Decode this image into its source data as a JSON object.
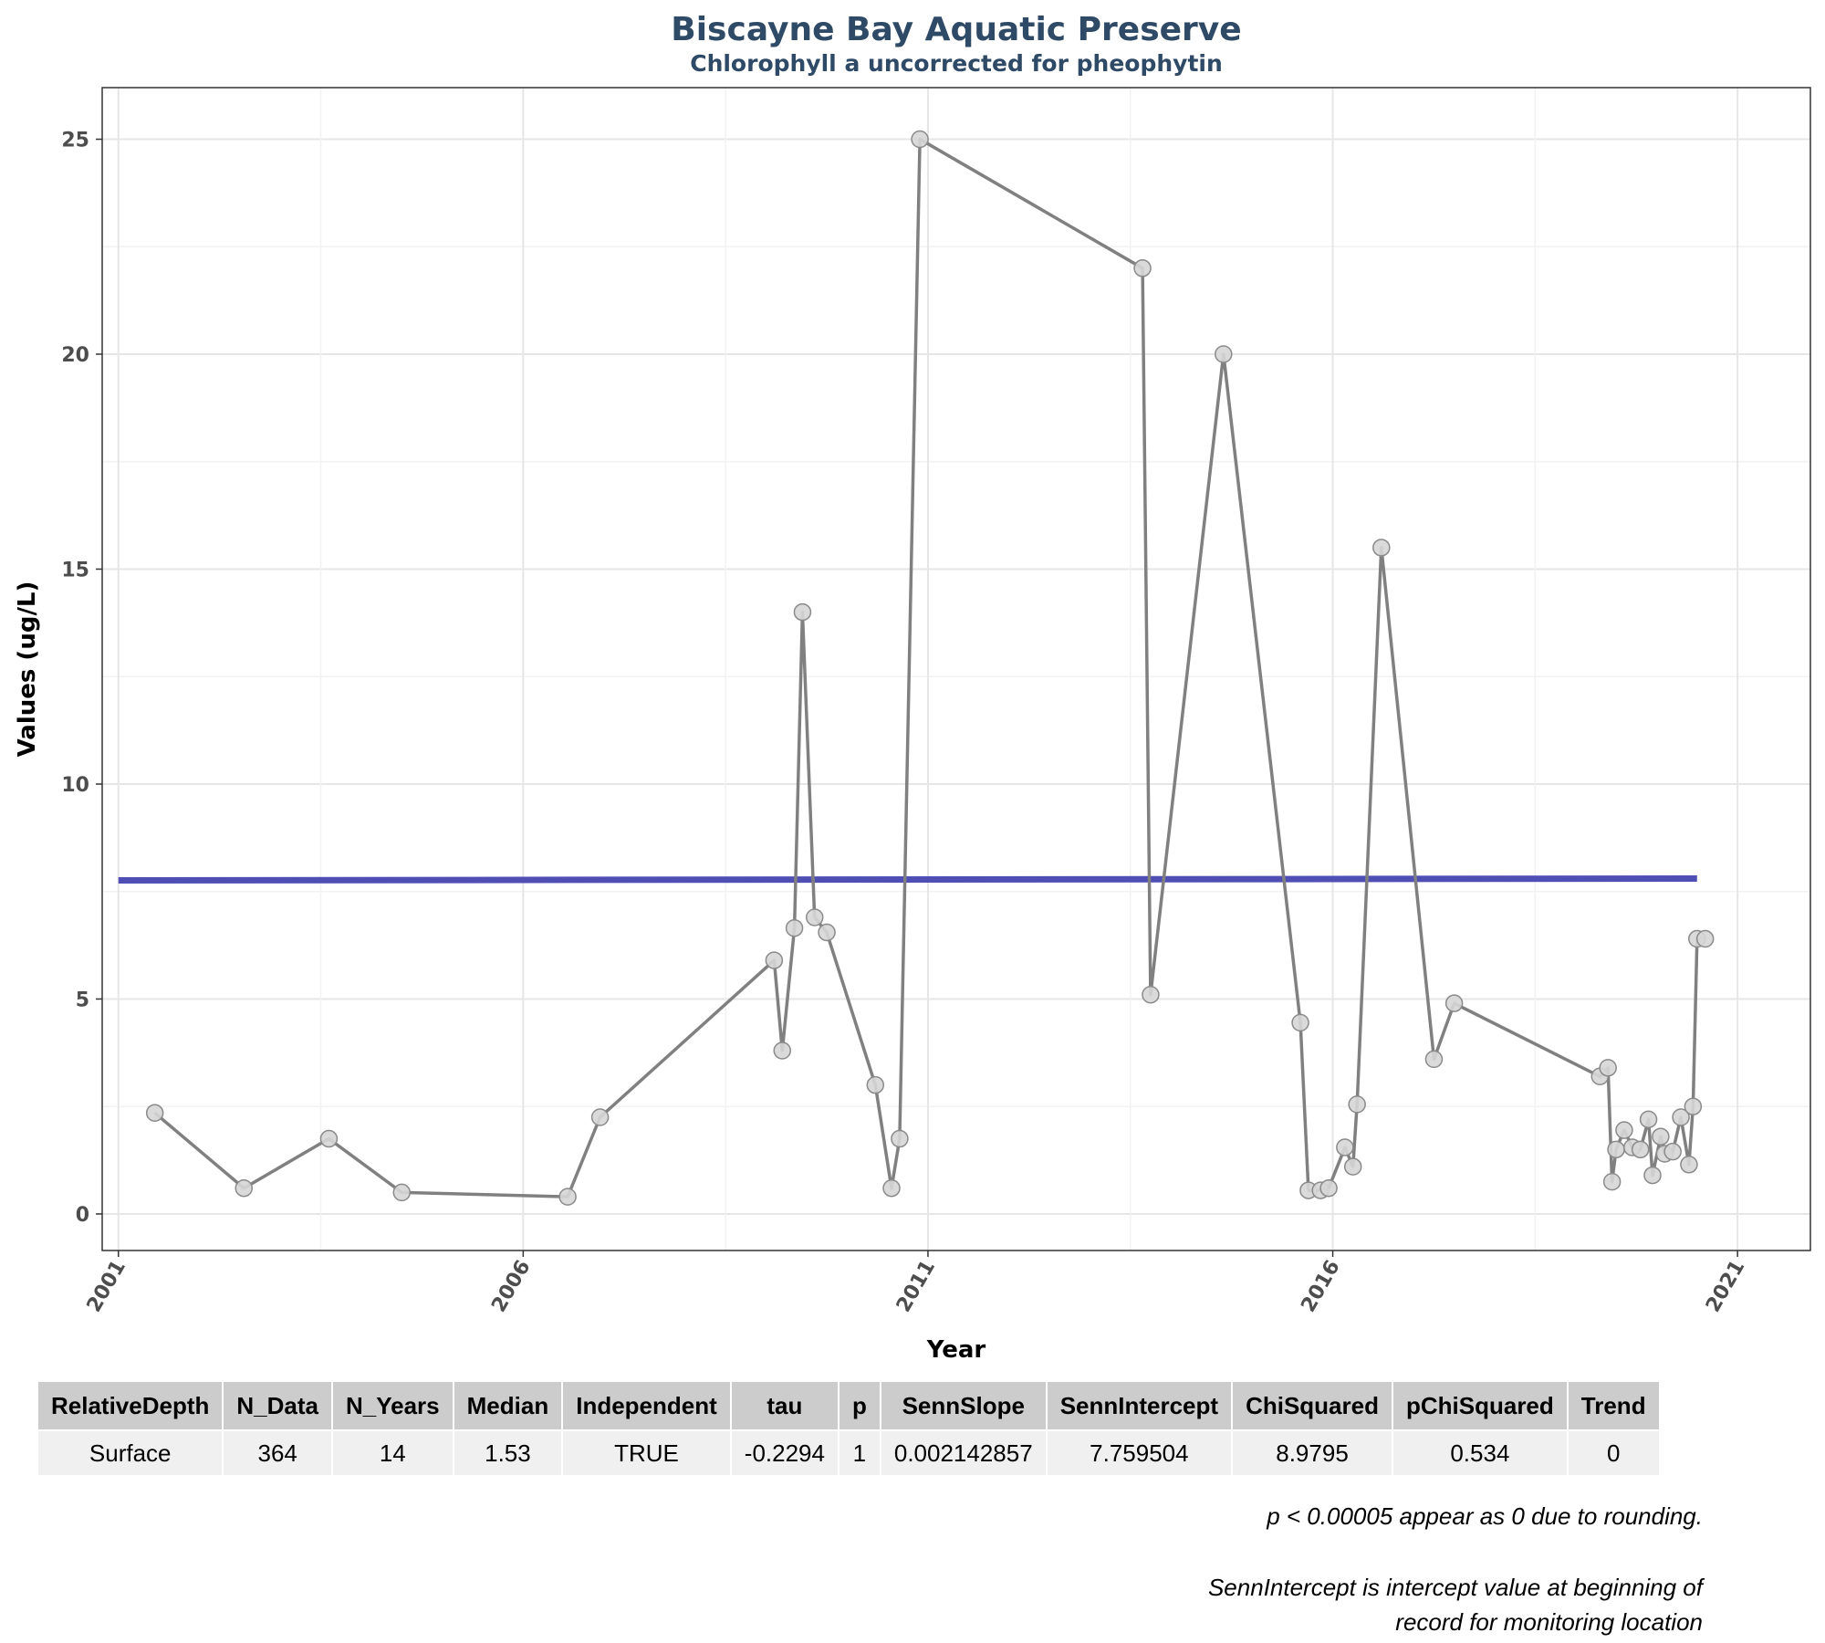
{
  "chart_data": {
    "type": "line",
    "title": "Biscayne Bay Aquatic Preserve",
    "subtitle": "Chlorophyll a uncorrected for pheophytin",
    "xlabel": "Year",
    "ylabel": "Values (ug/L)",
    "xlim": [
      2000.8,
      2021.9
    ],
    "ylim": [
      -0.85,
      26.2
    ],
    "x_ticks": [
      "2001",
      "2006",
      "2011",
      "2016",
      "2021"
    ],
    "y_ticks": [
      "0",
      "5",
      "10",
      "15",
      "20",
      "25"
    ],
    "grid": true,
    "series": [
      {
        "color": "#808080",
        "x": [
          2001.45,
          2002.55,
          2003.6,
          2004.5,
          2006.55,
          2006.95,
          2009.1,
          2009.2,
          2009.35,
          2009.45,
          2009.6,
          2009.75,
          2010.35,
          2010.55,
          2010.65,
          2010.9,
          2013.65,
          2013.75,
          2014.65,
          2015.6,
          2015.7,
          2015.85,
          2015.95,
          2016.15,
          2016.25,
          2016.3,
          2016.6,
          2017.25,
          2017.5,
          2019.3,
          2019.4,
          2019.45,
          2019.5,
          2019.6,
          2019.7,
          2019.8,
          2019.9,
          2019.95,
          2020.05,
          2020.1,
          2020.2,
          2020.3,
          2020.4,
          2020.45,
          2020.5,
          2020.6
        ],
        "values": [
          2.35,
          0.6,
          1.75,
          0.5,
          0.4,
          2.25,
          5.9,
          3.8,
          6.65,
          14.0,
          6.9,
          6.55,
          3.0,
          0.6,
          1.75,
          25.0,
          22.0,
          5.1,
          20.0,
          4.45,
          0.55,
          0.55,
          0.6,
          1.55,
          1.1,
          2.55,
          15.5,
          3.6,
          4.9,
          3.2,
          3.4,
          0.75,
          1.5,
          1.95,
          1.55,
          1.5,
          2.2,
          0.9,
          1.8,
          1.4,
          1.45,
          2.25,
          1.15,
          2.5,
          6.4,
          6.4
        ]
      },
      {
        "color": "#4545b0",
        "x": [
          2001.0,
          2020.5
        ],
        "values": [
          7.7595,
          7.8013
        ]
      }
    ]
  },
  "table": {
    "headers": [
      "RelativeDepth",
      "N_Data",
      "N_Years",
      "Median",
      "Independent",
      "tau",
      "p",
      "SennSlope",
      "SennIntercept",
      "ChiSquared",
      "pChiSquared",
      "Trend"
    ],
    "rows": [
      [
        "Surface",
        "364",
        "14",
        "1.53",
        "TRUE",
        "-0.2294",
        "1",
        "0.002142857",
        "7.759504",
        "8.9795",
        "0.534",
        "0"
      ]
    ]
  },
  "notes": {
    "note1": "p < 0.00005 appear as 0 due to rounding.",
    "note2_line1": "SennIntercept is intercept value at beginning of",
    "note2_line2": "record for monitoring location"
  }
}
